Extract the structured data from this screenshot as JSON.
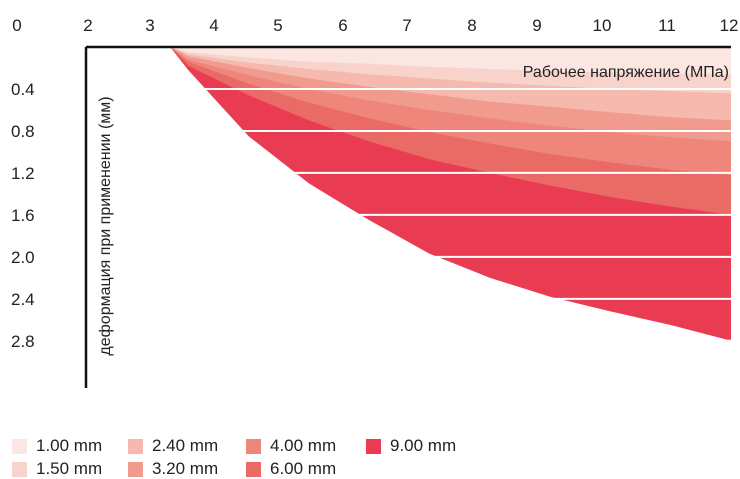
{
  "chart_data": {
    "type": "area",
    "title": "",
    "xlabel": "Рабочее напряжение (МПа)",
    "ylabel": "деформация при применении (мм)",
    "x_ticks": [
      "0",
      "2",
      "3",
      "4",
      "5",
      "6",
      "7",
      "8",
      "9",
      "10",
      "11",
      "12"
    ],
    "y_ticks": [
      "0.4",
      "0.8",
      "1.2",
      "1.6",
      "2.0",
      "2.4",
      "2.8"
    ],
    "xlim": [
      2,
      12
    ],
    "ylim": [
      0,
      3.25
    ],
    "y_inverted": true,
    "x_axis_position": "top",
    "grid": true,
    "legend_placement": "bottom-left",
    "x": [
      2.7,
      3,
      4,
      5,
      6,
      7,
      8,
      9,
      10,
      11,
      12
    ],
    "series": [
      {
        "name": "1.00 mm",
        "color": "#fbe6e1",
        "values": [
          0,
          0.05,
          0.1,
          0.14,
          0.16,
          0.19,
          0.21,
          0.23,
          0.24,
          0.25,
          0.26
        ]
      },
      {
        "name": "1.50 mm",
        "color": "#f8d3cb",
        "values": [
          0,
          0.07,
          0.15,
          0.21,
          0.26,
          0.3,
          0.34,
          0.37,
          0.4,
          0.42,
          0.44
        ]
      },
      {
        "name": "2.40 mm",
        "color": "#f5b9ad",
        "values": [
          0,
          0.09,
          0.2,
          0.3,
          0.38,
          0.45,
          0.52,
          0.57,
          0.62,
          0.67,
          0.7
        ]
      },
      {
        "name": "3.20 mm",
        "color": "#f09b8e",
        "values": [
          0,
          0.12,
          0.27,
          0.4,
          0.51,
          0.6,
          0.68,
          0.75,
          0.81,
          0.86,
          0.9
        ]
      },
      {
        "name": "4.00 mm",
        "color": "#ee867b",
        "values": [
          0,
          0.14,
          0.35,
          0.53,
          0.68,
          0.81,
          0.92,
          1.02,
          1.1,
          1.17,
          1.22
        ]
      },
      {
        "name": "6.00 mm",
        "color": "#ea6a65",
        "values": [
          0,
          0.18,
          0.46,
          0.7,
          0.9,
          1.07,
          1.2,
          1.32,
          1.43,
          1.52,
          1.6
        ]
      },
      {
        "name": "9.00 mm",
        "color": "#e93c52",
        "values": [
          0,
          0.22,
          0.85,
          1.3,
          1.65,
          1.97,
          2.2,
          2.38,
          2.52,
          2.65,
          2.8
        ]
      }
    ]
  }
}
